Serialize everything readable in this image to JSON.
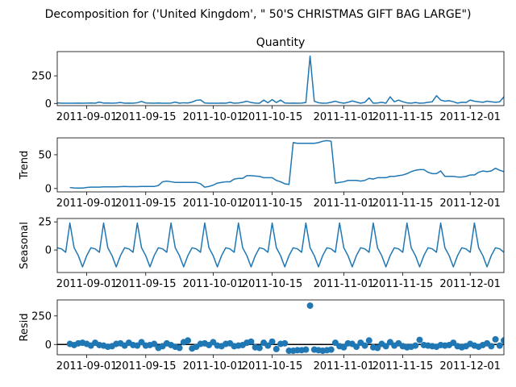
{
  "figure": {
    "title": "Decomposition for ('United Kingdom', \" 50'S CHRISTMAS GIFT BAG LARGE\")"
  },
  "chart_data": [
    {
      "type": "line",
      "panel": "observed",
      "title": "Quantity",
      "ylabel": "",
      "x_start": "2011-08-25",
      "x_end": "2011-12-09",
      "xticks": [
        "2011-09-01",
        "2011-09-15",
        "2011-10-01",
        "2011-10-15",
        "2011-11-01",
        "2011-11-15",
        "2011-12-01"
      ],
      "ylim": [
        -20,
        470
      ],
      "yticks": [
        0,
        250
      ],
      "color": "#1f77b4",
      "values": [
        5,
        2,
        2,
        2,
        2,
        3,
        2,
        3,
        4,
        2,
        12,
        3,
        4,
        2,
        4,
        8,
        2,
        3,
        2,
        6,
        18,
        4,
        3,
        2,
        4,
        2,
        2,
        3,
        12,
        2,
        6,
        4,
        12,
        28,
        32,
        4,
        2,
        2,
        2,
        3,
        2,
        10,
        2,
        4,
        10,
        20,
        8,
        3,
        2,
        30,
        6,
        35,
        8,
        30,
        4,
        2,
        3,
        2,
        3,
        8,
        430,
        20,
        6,
        2,
        3,
        10,
        20,
        8,
        2,
        10,
        22,
        12,
        2,
        10,
        50,
        2,
        4,
        10,
        2,
        60,
        15,
        30,
        15,
        5,
        2,
        8,
        2,
        4,
        10,
        15,
        70,
        30,
        20,
        25,
        15,
        3,
        10,
        8,
        30,
        20,
        15,
        10,
        20,
        15,
        10,
        15,
        60,
        40,
        55,
        10,
        4,
        10,
        20,
        30,
        8,
        5,
        40,
        25,
        12,
        30,
        20,
        10,
        15,
        12,
        10,
        10,
        15,
        10,
        2,
        40,
        50,
        12,
        2,
        4,
        8,
        2,
        10,
        5,
        4,
        15,
        10,
        5,
        2,
        5,
        8,
        25,
        10,
        4,
        10,
        25
      ]
    },
    {
      "type": "line",
      "panel": "trend",
      "title": "",
      "ylabel": "Trend",
      "x_start": "2011-08-25",
      "x_end": "2011-12-09",
      "xticks": [
        "2011-09-01",
        "2011-09-15",
        "2011-10-01",
        "2011-10-15",
        "2011-11-01",
        "2011-11-15",
        "2011-12-01"
      ],
      "ylim": [
        -5,
        75
      ],
      "yticks": [
        0,
        50
      ],
      "color": "#1f77b4",
      "values": [
        null,
        null,
        null,
        1.5,
        0.8,
        0.6,
        0.7,
        1.5,
        2,
        2,
        2,
        2.5,
        2.5,
        2.5,
        2.5,
        2.8,
        3,
        2.8,
        2.8,
        2.8,
        3,
        3,
        3,
        3,
        4.5,
        10,
        11,
        10,
        9,
        9,
        9,
        9,
        9,
        9,
        7,
        2,
        3,
        5,
        8,
        9,
        10,
        10,
        14,
        15,
        15,
        19,
        19,
        18.5,
        18,
        16,
        16,
        16,
        12,
        10,
        7,
        6,
        68,
        67,
        67,
        67,
        67,
        67,
        68,
        70,
        71,
        70,
        8,
        9,
        10,
        12,
        12,
        12,
        11,
        12,
        15,
        14,
        16,
        16,
        16,
        18,
        18,
        19,
        20,
        22,
        25,
        27,
        28,
        28,
        24,
        22,
        22,
        26,
        18,
        18,
        18,
        17,
        17,
        18,
        20,
        20,
        24,
        26,
        25,
        26,
        30,
        27,
        25,
        26,
        27,
        27,
        28,
        26,
        21,
        22,
        17,
        17,
        18,
        16,
        15,
        14,
        15,
        14,
        12,
        8,
        6,
        10,
        14,
        13,
        12,
        12,
        12,
        12,
        13,
        15,
        10,
        7,
        6,
        6,
        6,
        6,
        6,
        8,
        4,
        5,
        4,
        5,
        6,
        null,
        null,
        null
      ]
    },
    {
      "type": "line",
      "panel": "seasonal",
      "title": "",
      "ylabel": "Seasonal",
      "x_start": "2011-08-25",
      "x_end": "2011-12-09",
      "xticks": [
        "2011-09-01",
        "2011-09-15",
        "2011-10-01",
        "2011-10-15",
        "2011-11-01",
        "2011-11-15",
        "2011-12-01"
      ],
      "ylim": [
        -20,
        28
      ],
      "yticks": [
        -25,
        0,
        25
      ],
      "color": "#1f77b4",
      "period": 8,
      "pattern": [
        1,
        -2,
        24,
        2,
        -5,
        -15,
        -5,
        2
      ],
      "pattern_start": -1
    },
    {
      "type": "scatter",
      "panel": "resid",
      "title": "",
      "ylabel": "Resid",
      "x_start": "2011-08-25",
      "x_end": "2011-12-09",
      "xticks": [
        "2011-09-01",
        "2011-09-15",
        "2011-10-01",
        "2011-10-15",
        "2011-11-01",
        "2011-11-15",
        "2011-12-01"
      ],
      "ylim": [
        -90,
        390
      ],
      "yticks": [
        0,
        250
      ],
      "color": "#1f77b4",
      "zero_line": true,
      "values": [
        null,
        null,
        null,
        5,
        -5,
        10,
        15,
        5,
        -10,
        15,
        -5,
        -10,
        -20,
        -15,
        5,
        10,
        -10,
        15,
        -5,
        -10,
        20,
        -10,
        -5,
        5,
        -30,
        -15,
        10,
        -5,
        -20,
        -30,
        20,
        35,
        -35,
        -20,
        5,
        10,
        -5,
        20,
        -10,
        -15,
        5,
        10,
        -15,
        -10,
        -5,
        15,
        25,
        -25,
        -30,
        15,
        -10,
        25,
        -40,
        5,
        10,
        -55,
        -55,
        -50,
        -50,
        -45,
        340,
        -45,
        -50,
        -55,
        -50,
        -45,
        15,
        -15,
        -25,
        10,
        5,
        -20,
        15,
        -10,
        35,
        -25,
        -30,
        5,
        -15,
        20,
        -10,
        10,
        -15,
        -25,
        -20,
        -10,
        40,
        -5,
        -10,
        -15,
        -20,
        -5,
        -10,
        -5,
        15,
        -15,
        -25,
        -15,
        5,
        -10,
        -20,
        -5,
        10,
        -15,
        45,
        -10,
        35,
        -15,
        -45,
        -10,
        15,
        -5,
        10,
        -20,
        -25,
        15,
        -5,
        10,
        20,
        -10,
        15,
        25,
        -15,
        -10,
        -5,
        -20,
        20,
        10,
        -15,
        5,
        -10,
        -15,
        30,
        -15,
        -5,
        -10,
        5,
        -15,
        -10,
        15,
        10,
        -10,
        -5,
        5,
        -15,
        -10,
        null,
        null,
        null
      ]
    }
  ]
}
